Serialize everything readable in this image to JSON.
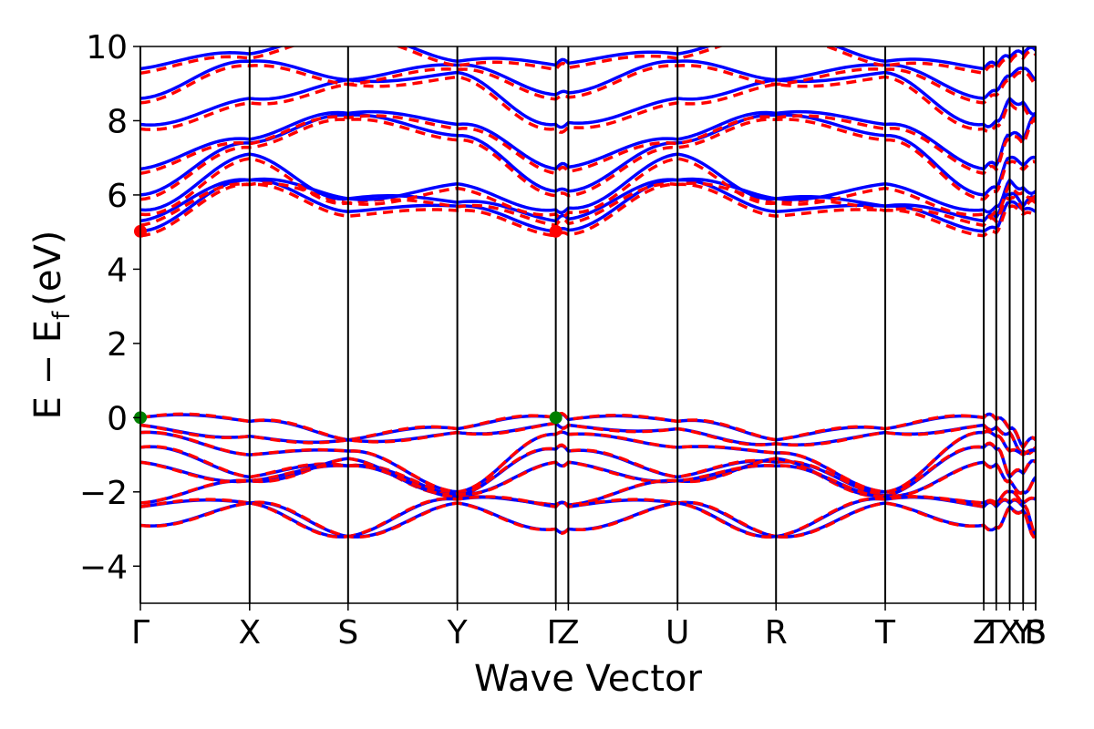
{
  "chart_data": {
    "type": "line",
    "title": "",
    "xlabel": "Wave Vector",
    "ylabel": {
      "main": "E − E",
      "sub": "f",
      "unit": "(eV)"
    },
    "ylim": [
      -5,
      10
    ],
    "yticks": [
      {
        "value": -4,
        "label": "−4"
      },
      {
        "value": -2,
        "label": "−2"
      },
      {
        "value": 0,
        "label": "0"
      },
      {
        "value": 2,
        "label": "2"
      },
      {
        "value": 4,
        "label": "4"
      },
      {
        "value": 6,
        "label": "6"
      },
      {
        "value": 8,
        "label": "8"
      },
      {
        "value": 10,
        "label": "10"
      }
    ],
    "kpath": [
      {
        "label": "Γ",
        "k": 0.0
      },
      {
        "label": "X",
        "k": 0.122
      },
      {
        "label": "S",
        "k": 0.232
      },
      {
        "label": "Y",
        "k": 0.354
      },
      {
        "label": "Γ",
        "k": 0.464
      },
      {
        "label": "Z",
        "k": 0.478
      },
      {
        "label": "U",
        "k": 0.6
      },
      {
        "label": "R",
        "k": 0.71
      },
      {
        "label": "T",
        "k": 0.832
      },
      {
        "label": "Z",
        "k": 0.942
      },
      {
        "label": "Γ",
        "k": 0.956
      },
      {
        "label": "X",
        "k": 0.971
      },
      {
        "label": "Y",
        "k": 0.986
      },
      {
        "label": "B",
        "k": 1.0
      },
      {
        "label": "S",
        "k": 1.0
      }
    ],
    "series": [
      {
        "color": "#0000ff",
        "style": "solid"
      },
      {
        "color": "#ff0000",
        "style": "dashed"
      }
    ],
    "markers": [
      {
        "k": 0.0,
        "energy": 5.02,
        "color": "#ff0000"
      },
      {
        "k": 0.464,
        "energy": 5.02,
        "color": "#ff0000"
      },
      {
        "k": 0.0,
        "energy": 0.0,
        "color": "#008000"
      },
      {
        "k": 0.464,
        "energy": 0.0,
        "color": "#008000"
      }
    ],
    "grid": false,
    "legend": "none"
  }
}
